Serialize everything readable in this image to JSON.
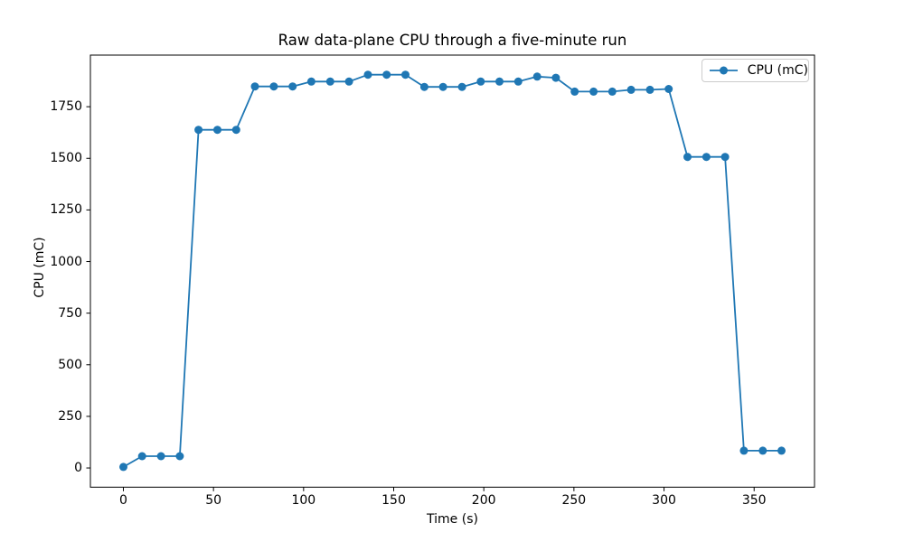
{
  "chart_data": {
    "type": "line",
    "title": "Raw data-plane CPU through a five-minute run",
    "xlabel": "Time (s)",
    "ylabel": "CPU (mC)",
    "legend": {
      "position": "upper right",
      "entries": [
        "CPU (mC)"
      ]
    },
    "x_ticks": [
      0,
      50,
      100,
      150,
      200,
      250,
      300,
      350
    ],
    "y_ticks": [
      0,
      250,
      500,
      750,
      1000,
      1250,
      1500,
      1750
    ],
    "xlim": [
      -18.3,
      383.5
    ],
    "ylim": [
      -93,
      2000
    ],
    "grid": false,
    "line_color": "#1f77b4",
    "marker": "circle",
    "marker_radius": 4.5,
    "line_width": 1.8,
    "series": [
      {
        "name": "CPU (mC)",
        "x": [
          0,
          10.4,
          20.9,
          31.3,
          41.7,
          52.2,
          62.6,
          73.0,
          83.5,
          93.9,
          104.3,
          114.8,
          125.2,
          135.7,
          146.1,
          156.5,
          167.0,
          177.4,
          187.9,
          198.3,
          208.7,
          219.1,
          229.6,
          240.0,
          250.4,
          260.9,
          271.3,
          281.7,
          292.2,
          302.6,
          313.0,
          323.5,
          333.9,
          344.3,
          354.8,
          365.2
        ],
        "y": [
          5,
          57,
          57,
          57,
          1638,
          1638,
          1638,
          1848,
          1848,
          1848,
          1872,
          1872,
          1872,
          1905,
          1905,
          1905,
          1846,
          1846,
          1846,
          1872,
          1872,
          1872,
          1896,
          1890,
          1823,
          1823,
          1823,
          1832,
          1832,
          1836,
          1507,
          1507,
          1507,
          84,
          84,
          84
        ]
      }
    ]
  }
}
